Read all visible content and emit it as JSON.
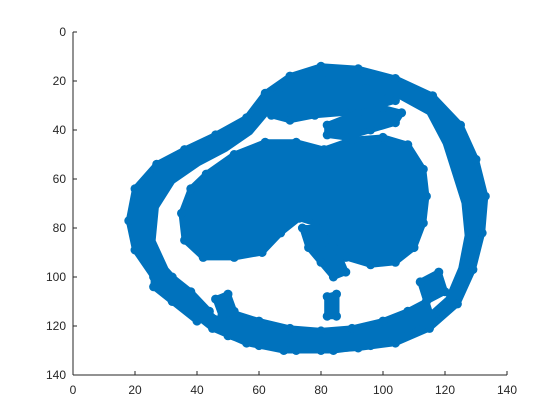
{
  "chart_data": {
    "type": "scatter",
    "title": "",
    "xlabel": "",
    "ylabel": "",
    "xlim": [
      0,
      140
    ],
    "ylim": [
      0,
      140
    ],
    "y_axis_reversed": true,
    "grid": false,
    "legend": "none",
    "x_ticks": [
      "0",
      "20",
      "40",
      "60",
      "80",
      "100",
      "120",
      "140"
    ],
    "y_ticks": [
      "0",
      "20",
      "40",
      "60",
      "80",
      "100",
      "120",
      "140"
    ],
    "series": [
      {
        "color": "#0072BD",
        "marker": "filled-circle",
        "regions": [
          {
            "part": "outer-ring",
            "outline": [
              [
                80,
                14
              ],
              [
                92,
                15
              ],
              [
                104,
                19
              ],
              [
                116,
                26
              ],
              [
                125,
                38
              ],
              [
                130,
                52
              ],
              [
                133,
                67
              ],
              [
                132,
                82
              ],
              [
                129,
                97
              ],
              [
                124,
                111
              ],
              [
                115,
                121
              ],
              [
                104,
                127
              ],
              [
                92,
                129
              ],
              [
                80,
                130
              ],
              [
                68,
                130
              ],
              [
                56,
                127
              ],
              [
                45,
                121
              ],
              [
                35,
                111
              ],
              [
                26,
                100
              ],
              [
                20,
                89
              ],
              [
                18,
                77
              ],
              [
                20,
                64
              ],
              [
                27,
                54
              ],
              [
                36,
                48
              ],
              [
                46,
                42
              ],
              [
                56,
                35
              ],
              [
                62,
                25
              ],
              [
                70,
                18
              ]
            ]
          },
          {
            "part": "inner-hole",
            "outline": [
              [
                82,
                22
              ],
              [
                93,
                23
              ],
              [
                104,
                27
              ],
              [
                114,
                34
              ],
              [
                119,
                46
              ],
              [
                122,
                58
              ],
              [
                125,
                70
              ],
              [
                126,
                83
              ],
              [
                124,
                96
              ],
              [
                120,
                108
              ],
              [
                112,
                117
              ],
              [
                101,
                122
              ],
              [
                90,
                124
              ],
              [
                80,
                125
              ],
              [
                68,
                124
              ],
              [
                56,
                121
              ],
              [
                46,
                115
              ],
              [
                38,
                106
              ],
              [
                31,
                96
              ],
              [
                27,
                85
              ],
              [
                28,
                72
              ],
              [
                33,
                62
              ],
              [
                41,
                55
              ],
              [
                50,
                49
              ],
              [
                58,
                42
              ],
              [
                64,
                33
              ],
              [
                72,
                25
              ]
            ]
          },
          {
            "part": "femur-mass",
            "outline": [
              [
                43,
                58
              ],
              [
                52,
                50
              ],
              [
                62,
                45
              ],
              [
                72,
                45
              ],
              [
                81,
                48
              ],
              [
                90,
                44
              ],
              [
                100,
                43
              ],
              [
                108,
                46
              ],
              [
                113,
                56
              ],
              [
                114,
                67
              ],
              [
                113,
                78
              ],
              [
                110,
                88
              ],
              [
                104,
                94
              ],
              [
                96,
                95
              ],
              [
                88,
                92
              ],
              [
                83,
                86
              ],
              [
                78,
                78
              ],
              [
                73,
                76
              ],
              [
                67,
                82
              ],
              [
                61,
                90
              ],
              [
                52,
                92
              ],
              [
                42,
                92
              ],
              [
                36,
                85
              ],
              [
                35,
                74
              ],
              [
                38,
                64
              ]
            ]
          },
          {
            "part": "upper-band",
            "outline": [
              [
                70,
                20
              ],
              [
                80,
                19
              ],
              [
                92,
                22
              ],
              [
                100,
                24
              ],
              [
                104,
                28
              ],
              [
                96,
                31
              ],
              [
                88,
                33
              ],
              [
                78,
                34
              ],
              [
                70,
                36
              ],
              [
                64,
                34
              ],
              [
                63,
                28
              ]
            ]
          },
          {
            "part": "upper-right-band",
            "outline": [
              [
                82,
                38
              ],
              [
                92,
                33
              ],
              [
                100,
                31
              ],
              [
                106,
                33
              ],
              [
                104,
                37
              ],
              [
                96,
                40
              ],
              [
                88,
                43
              ],
              [
                82,
                42
              ]
            ]
          },
          {
            "part": "lower-band",
            "outline": [
              [
                50,
                114
              ],
              [
                60,
                118
              ],
              [
                70,
                121
              ],
              [
                80,
                122
              ],
              [
                90,
                121
              ],
              [
                100,
                118
              ],
              [
                108,
                114
              ],
              [
                114,
                110
              ],
              [
                116,
                118
              ],
              [
                108,
                124
              ],
              [
                96,
                128
              ],
              [
                84,
                130
              ],
              [
                72,
                130
              ],
              [
                60,
                128
              ],
              [
                50,
                124
              ]
            ]
          },
          {
            "part": "left-lower-patch",
            "outline": [
              [
                26,
                96
              ],
              [
                32,
                100
              ],
              [
                38,
                106
              ],
              [
                44,
                114
              ],
              [
                40,
                118
              ],
              [
                32,
                110
              ],
              [
                26,
                104
              ]
            ]
          },
          {
            "part": "lower-left-strand",
            "outline": [
              [
                46,
                109
              ],
              [
                50,
                107
              ],
              [
                52,
                114
              ],
              [
                48,
                116
              ]
            ]
          },
          {
            "part": "lower-center-strand",
            "outline": [
              [
                82,
                108
              ],
              [
                85,
                107
              ],
              [
                85,
                116
              ],
              [
                82,
                116
              ]
            ]
          },
          {
            "part": "right-lower-strand",
            "outline": [
              [
                112,
                102
              ],
              [
                118,
                98
              ],
              [
                120,
                106
              ],
              [
                114,
                110
              ]
            ]
          },
          {
            "part": "center-strand",
            "outline": [
              [
                74,
                80
              ],
              [
                78,
                80
              ],
              [
                83,
                88
              ],
              [
                86,
                92
              ],
              [
                88,
                98
              ],
              [
                84,
                100
              ],
              [
                80,
                94
              ],
              [
                76,
                88
              ]
            ]
          }
        ]
      }
    ]
  }
}
